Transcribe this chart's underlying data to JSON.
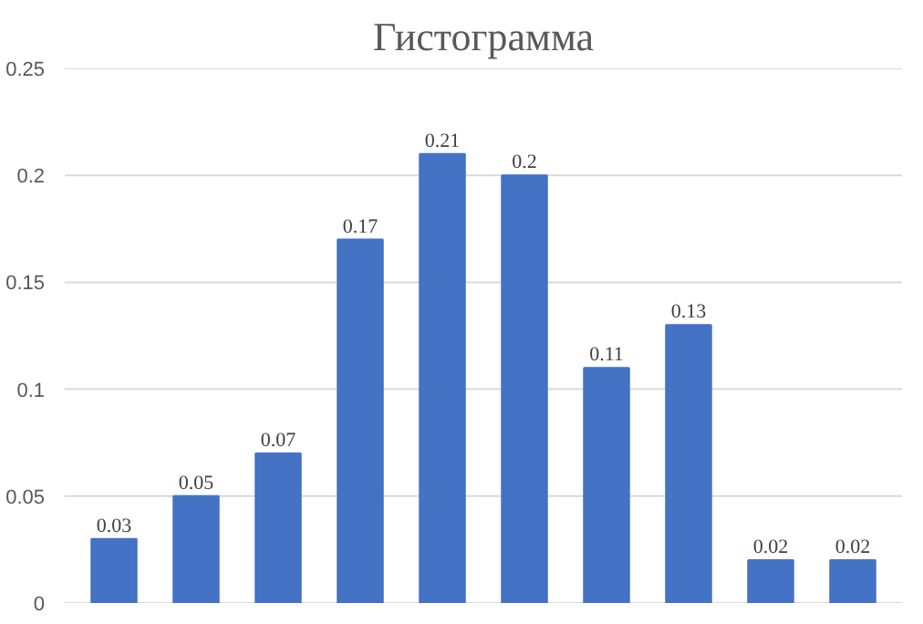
{
  "chart_data": {
    "type": "bar",
    "title": "Гистограмма",
    "categories": [
      null,
      null,
      null,
      null,
      null,
      null,
      null,
      null,
      null,
      null
    ],
    "values": [
      0.03,
      0.05,
      0.07,
      0.17,
      0.21,
      0.2,
      0.11,
      0.13,
      0.02,
      0.02
    ],
    "color": "#4472c4",
    "ylim": [
      0,
      0.25
    ],
    "yticks": [
      0,
      0.05,
      0.1,
      0.15,
      0.2,
      0.25
    ],
    "grid": "y",
    "data_labels": true
  }
}
